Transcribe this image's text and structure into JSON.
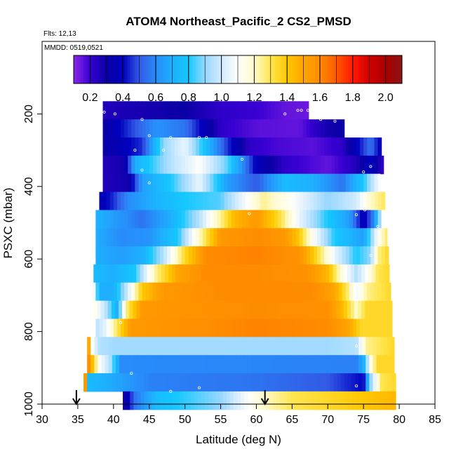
{
  "chart_data": {
    "type": "heatmap",
    "title": "ATOM4 Northeast_Pacific_2 CS2_PMSD",
    "flights_label": "Flts: 12,13",
    "mmdd_label": "MMDD: 0519,0521",
    "xlabel": "Latitude (deg N)",
    "ylabel": "PSXC (mbar)",
    "xlim": [
      30,
      85
    ],
    "ylim": [
      1000,
      0
    ],
    "x_ticks": [
      "30",
      "35",
      "40",
      "45",
      "50",
      "55",
      "60",
      "65",
      "70",
      "75",
      "80",
      "85"
    ],
    "y_ticks": [
      "200",
      "400",
      "600",
      "800",
      "1000"
    ],
    "colorbar": {
      "range": [
        0.1,
        2.1
      ],
      "ticks": [
        "0.2",
        "0.4",
        "0.6",
        "0.8",
        "1.0",
        "1.2",
        "1.4",
        "1.6",
        "1.8",
        "2.0"
      ]
    },
    "arrows_lat": [
      34.8,
      61.2
    ],
    "rows": [
      {
        "p": 190,
        "x0": 38.5,
        "x1": 67.3,
        "kn": [
          [
            38.5,
            0.25
          ],
          [
            50,
            0.3
          ],
          [
            55,
            0.22
          ],
          [
            60,
            0.2
          ],
          [
            64,
            0.15
          ],
          [
            67.3,
            0.14
          ]
        ]
      },
      {
        "p": 240,
        "x0": 38.5,
        "x1": 72.3,
        "kn": [
          [
            38.5,
            0.3
          ],
          [
            46,
            0.62
          ],
          [
            50,
            0.55
          ],
          [
            55,
            0.22
          ],
          [
            60,
            0.16
          ],
          [
            66,
            0.15
          ],
          [
            70,
            0.28
          ],
          [
            72.3,
            0.3
          ]
        ]
      },
      {
        "p": 290,
        "x0": 38.5,
        "x1": 77.5,
        "kn": [
          [
            38.5,
            0.3
          ],
          [
            44,
            0.45
          ],
          [
            47,
            0.9
          ],
          [
            50,
            1.05
          ],
          [
            53,
            0.75
          ],
          [
            56,
            0.45
          ],
          [
            59,
            0.22
          ],
          [
            63,
            0.18
          ],
          [
            68,
            0.16
          ],
          [
            72,
            0.22
          ],
          [
            76,
            0.55
          ],
          [
            77.5,
            0.35
          ]
        ]
      },
      {
        "p": 340,
        "x0": 38.5,
        "x1": 77.8,
        "kn": [
          [
            38.5,
            0.25
          ],
          [
            41.5,
            0.28
          ],
          [
            43,
            0.7
          ],
          [
            48,
            0.95
          ],
          [
            52,
            1.1
          ],
          [
            56,
            0.85
          ],
          [
            60,
            0.38
          ],
          [
            64,
            0.22
          ],
          [
            70,
            0.15
          ],
          [
            74,
            0.25
          ],
          [
            76,
            0.4
          ],
          [
            77.8,
            0.2
          ]
        ]
      },
      {
        "p": 390,
        "x0": 38.5,
        "x1": 77.3,
        "kn": [
          [
            38.5,
            0.25
          ],
          [
            42,
            0.28
          ],
          [
            44,
            0.65
          ],
          [
            48,
            0.8
          ],
          [
            52,
            1.05
          ],
          [
            56,
            0.65
          ],
          [
            60,
            0.5
          ],
          [
            64,
            0.75
          ],
          [
            68,
            0.7
          ],
          [
            72,
            0.55
          ],
          [
            75,
            0.8
          ],
          [
            77.3,
            1.1
          ]
        ]
      },
      {
        "p": 440,
        "x0": 38.0,
        "x1": 78.0,
        "kn": [
          [
            38,
            0.35
          ],
          [
            40,
            0.45
          ],
          [
            42,
            0.6
          ],
          [
            46,
            0.72
          ],
          [
            50,
            0.8
          ],
          [
            55,
            0.85
          ],
          [
            58,
            1.05
          ],
          [
            61,
            1.25
          ],
          [
            65,
            1.1
          ],
          [
            70,
            0.9
          ],
          [
            74,
            1.0
          ],
          [
            76,
            1.2
          ],
          [
            78,
            1.3
          ]
        ]
      },
      {
        "p": 490,
        "x0": 37.5,
        "x1": 78.0,
        "kn": [
          [
            37.5,
            0.72
          ],
          [
            40,
            0.65
          ],
          [
            44,
            0.55
          ],
          [
            48,
            0.7
          ],
          [
            52,
            0.95
          ],
          [
            55,
            1.25
          ],
          [
            57,
            1.45
          ],
          [
            60,
            1.55
          ],
          [
            63,
            1.35
          ],
          [
            66,
            1.05
          ],
          [
            70,
            0.8
          ],
          [
            73,
            0.65
          ],
          [
            75,
            0.35
          ],
          [
            76.5,
            0.6
          ],
          [
            78,
            1.2
          ]
        ]
      },
      {
        "p": 540,
        "x0": 37.5,
        "x1": 78.3,
        "kn": [
          [
            37.5,
            0.7
          ],
          [
            41,
            0.6
          ],
          [
            45,
            0.62
          ],
          [
            49,
            0.8
          ],
          [
            52,
            1.2
          ],
          [
            55,
            1.55
          ],
          [
            60,
            1.6
          ],
          [
            64,
            1.55
          ],
          [
            66,
            1.4
          ],
          [
            68,
            1.1
          ],
          [
            71,
            0.8
          ],
          [
            75,
            0.65
          ],
          [
            77,
            1.1
          ],
          [
            78.3,
            1.3
          ]
        ]
      },
      {
        "p": 590,
        "x0": 37.5,
        "x1": 78.5,
        "kn": [
          [
            37.5,
            0.7
          ],
          [
            41,
            0.65
          ],
          [
            44,
            0.7
          ],
          [
            47,
            0.95
          ],
          [
            50,
            1.35
          ],
          [
            53,
            1.6
          ],
          [
            60,
            1.62
          ],
          [
            66,
            1.58
          ],
          [
            68,
            1.4
          ],
          [
            71,
            1.05
          ],
          [
            74,
            0.8
          ],
          [
            76,
            0.9
          ],
          [
            77,
            1.25
          ],
          [
            78.5,
            1.35
          ]
        ]
      },
      {
        "p": 640,
        "x0": 37.2,
        "x1": 78.6,
        "kn": [
          [
            37.2,
            0.75
          ],
          [
            40,
            0.7
          ],
          [
            43,
            0.8
          ],
          [
            46,
            1.25
          ],
          [
            49,
            1.5
          ],
          [
            53,
            1.6
          ],
          [
            60,
            1.6
          ],
          [
            67,
            1.58
          ],
          [
            70,
            1.45
          ],
          [
            72,
            1.15
          ],
          [
            74,
            0.95
          ],
          [
            75.5,
            1.1
          ],
          [
            77,
            1.3
          ],
          [
            78.6,
            1.35
          ]
        ]
      },
      {
        "p": 690,
        "x0": 37.0,
        "x1": 78.8,
        "kn": [
          [
            37,
            1.2
          ],
          [
            38,
            0.7
          ],
          [
            40,
            0.7
          ],
          [
            42,
            1.0
          ],
          [
            44,
            1.4
          ],
          [
            47,
            1.55
          ],
          [
            55,
            1.6
          ],
          [
            68,
            1.6
          ],
          [
            71,
            1.5
          ],
          [
            73,
            1.25
          ],
          [
            74,
            1.05
          ],
          [
            75.5,
            1.25
          ],
          [
            78.8,
            1.35
          ]
        ]
      },
      {
        "p": 740,
        "x0": 37.2,
        "x1": 79.0,
        "kn": [
          [
            37.2,
            1.15
          ],
          [
            39,
            0.95
          ],
          [
            40.5,
            0.7
          ],
          [
            42,
            1.3
          ],
          [
            44,
            1.55
          ],
          [
            60,
            1.6
          ],
          [
            70,
            1.58
          ],
          [
            72,
            1.45
          ],
          [
            74,
            1.2
          ],
          [
            75.5,
            1.35
          ],
          [
            79,
            1.35
          ]
        ]
      },
      {
        "p": 790,
        "x0": 37.5,
        "x1": 79.0,
        "kn": [
          [
            37.5,
            0.95
          ],
          [
            39,
            1.05
          ],
          [
            40.5,
            1.3
          ],
          [
            42.5,
            1.55
          ],
          [
            60,
            1.62
          ],
          [
            70,
            1.6
          ],
          [
            73,
            1.5
          ],
          [
            74.5,
            1.35
          ],
          [
            79,
            1.35
          ]
        ]
      },
      {
        "p": 840,
        "x0": 36.3,
        "x1": 79.3,
        "kn": [
          [
            36.3,
            1.7
          ],
          [
            37,
            1.1
          ],
          [
            38,
            0.95
          ],
          [
            40,
            0.92
          ],
          [
            55,
            0.92
          ],
          [
            70,
            0.92
          ],
          [
            74,
            0.95
          ],
          [
            75.5,
            1.25
          ],
          [
            79.3,
            1.35
          ]
        ]
      },
      {
        "p": 890,
        "x0": 36.3,
        "x1": 79.3,
        "kn": [
          [
            36.3,
            1.65
          ],
          [
            37,
            1.45
          ],
          [
            38,
            1.1
          ],
          [
            39.5,
            0.95
          ],
          [
            41,
            0.6
          ],
          [
            74,
            0.58
          ],
          [
            75,
            0.7
          ],
          [
            76,
            1.15
          ],
          [
            77,
            1.35
          ],
          [
            79.3,
            1.35
          ]
        ]
      },
      {
        "p": 940,
        "x0": 35.8,
        "x1": 79.5,
        "kn": [
          [
            35.8,
            2.0
          ],
          [
            36.5,
            0.75
          ],
          [
            39,
            0.7
          ],
          [
            45,
            0.58
          ],
          [
            60,
            0.55
          ],
          [
            70,
            0.5
          ],
          [
            75,
            0.4
          ],
          [
            76,
            0.9
          ],
          [
            77.5,
            1.3
          ],
          [
            79.5,
            1.35
          ]
        ]
      },
      {
        "p": 990,
        "x0": 41.3,
        "x1": 79.5,
        "kn": [
          [
            41.3,
            0.25
          ],
          [
            43,
            0.55
          ],
          [
            46,
            0.75
          ],
          [
            50,
            0.82
          ],
          [
            55,
            0.9
          ],
          [
            58,
            1.05
          ],
          [
            61,
            1.2
          ],
          [
            65,
            1.3
          ],
          [
            70,
            1.35
          ],
          [
            75,
            1.4
          ],
          [
            79.5,
            1.45
          ]
        ]
      }
    ],
    "circles": [
      [
        38.7,
        195
      ],
      [
        40.2,
        200
      ],
      [
        44,
        215
      ],
      [
        64,
        200
      ],
      [
        65.8,
        190
      ],
      [
        66.3,
        190
      ],
      [
        67.2,
        190
      ],
      [
        69,
        215
      ],
      [
        71,
        220
      ],
      [
        45,
        260
      ],
      [
        48,
        265
      ],
      [
        52,
        265
      ],
      [
        53,
        265
      ],
      [
        43,
        300
      ],
      [
        47,
        300
      ],
      [
        58,
        325
      ],
      [
        75,
        360
      ],
      [
        76,
        345
      ],
      [
        44,
        355
      ],
      [
        45,
        390
      ],
      [
        59,
        475
      ],
      [
        74,
        478
      ],
      [
        75.2,
        465
      ],
      [
        77,
        510
      ],
      [
        76,
        590
      ],
      [
        41,
        775
      ],
      [
        74,
        840
      ],
      [
        42.5,
        915
      ],
      [
        52,
        955
      ],
      [
        74,
        950
      ],
      [
        48,
        965
      ]
    ]
  }
}
